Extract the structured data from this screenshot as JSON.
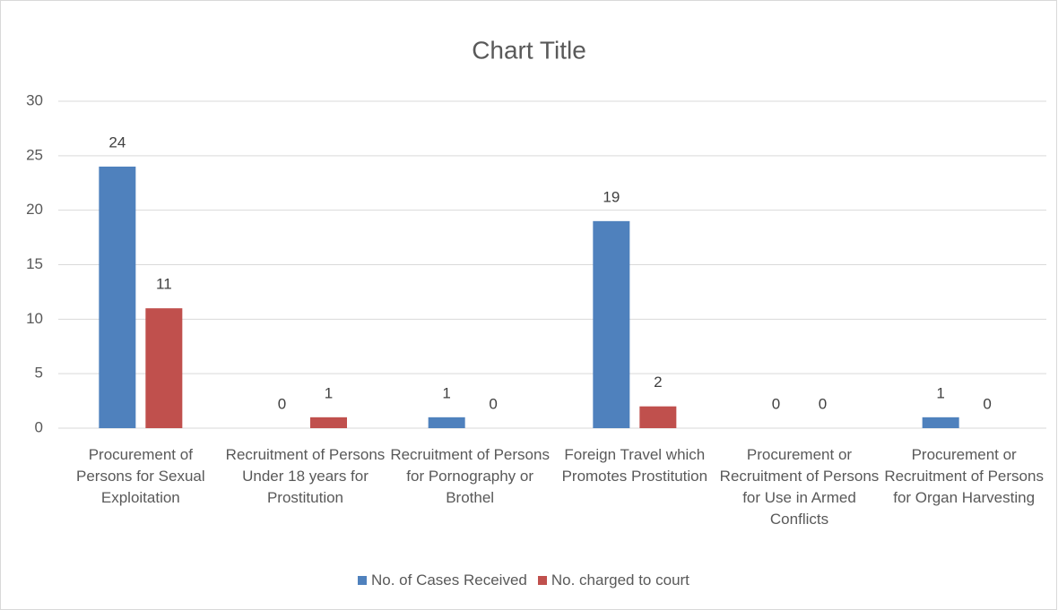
{
  "chart_data": {
    "type": "bar",
    "title": "Chart Title",
    "categories": [
      "Procurement of Persons for Sexual Exploitation",
      "Recruitment of Persons Under 18 years for Prostitution",
      "Recruitment of Persons for Pornography or Brothel",
      "Foreign Travel which Promotes Prostitution",
      "Procurement or Recruitment of Persons for Use in Armed Conflicts",
      "Procurement or Recruitment of Persons for Organ Harvesting"
    ],
    "series": [
      {
        "name": "No. of Cases Received",
        "color": "#4f81bd",
        "values": [
          24,
          0,
          1,
          19,
          0,
          1
        ]
      },
      {
        "name": "No. charged to court",
        "color": "#c0504d",
        "values": [
          11,
          1,
          0,
          2,
          0,
          0
        ]
      }
    ],
    "ylim": [
      0,
      30
    ],
    "yticks": [
      0,
      5,
      10,
      15,
      20,
      25,
      30
    ],
    "grid": true,
    "legend": "bottom"
  }
}
